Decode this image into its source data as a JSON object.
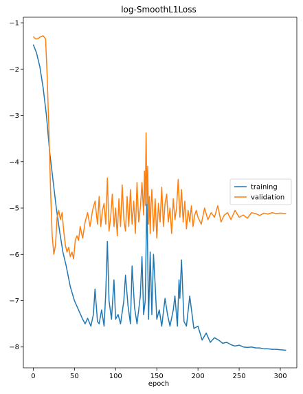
{
  "chart_data": {
    "type": "line",
    "title": "log-SmoothL1Loss",
    "xlabel": "epoch",
    "ylabel": "",
    "xlim": [
      -12,
      320
    ],
    "ylim": [
      -8.45,
      -0.88
    ],
    "xticks": [
      0,
      50,
      100,
      150,
      200,
      250,
      300
    ],
    "yticks": [
      -8,
      -7,
      -6,
      -5,
      -4,
      -3,
      -2,
      -1
    ],
    "grid": false,
    "legend": {
      "position": "center-right",
      "entries": [
        "training",
        "validation"
      ]
    },
    "series": [
      {
        "name": "training",
        "color": "#1f77b4",
        "x": [
          0,
          4,
          8,
          12,
          16,
          20,
          24,
          28,
          32,
          36,
          40,
          45,
          50,
          55,
          60,
          63,
          66,
          70,
          73,
          75,
          78,
          80,
          83,
          86,
          88,
          90,
          92,
          95,
          98,
          100,
          103,
          106,
          110,
          112,
          115,
          118,
          120,
          123,
          126,
          130,
          132,
          134,
          136,
          138,
          140,
          142,
          144,
          146,
          148,
          150,
          153,
          156,
          160,
          163,
          166,
          170,
          172,
          175,
          177,
          178,
          180,
          183,
          186,
          190,
          195,
          200,
          205,
          210,
          215,
          220,
          225,
          230,
          235,
          240,
          245,
          250,
          255,
          260,
          265,
          270,
          275,
          280,
          285,
          290,
          295,
          300,
          307
        ],
        "y": [
          -1.47,
          -1.65,
          -1.95,
          -2.4,
          -3.0,
          -3.8,
          -4.4,
          -5.0,
          -5.5,
          -5.95,
          -6.25,
          -6.7,
          -7.0,
          -7.2,
          -7.4,
          -7.5,
          -7.38,
          -7.55,
          -7.3,
          -6.75,
          -7.45,
          -7.5,
          -7.2,
          -7.55,
          -6.85,
          -5.72,
          -7.0,
          -7.4,
          -6.55,
          -7.4,
          -7.3,
          -7.5,
          -7.0,
          -6.45,
          -7.1,
          -7.5,
          -6.25,
          -7.15,
          -7.5,
          -6.9,
          -6.05,
          -7.3,
          -7.0,
          -4.72,
          -7.4,
          -5.95,
          -7.3,
          -6.0,
          -6.65,
          -7.4,
          -7.2,
          -7.55,
          -6.95,
          -7.3,
          -7.55,
          -7.2,
          -6.9,
          -7.55,
          -6.55,
          -6.95,
          -6.12,
          -7.45,
          -7.55,
          -6.9,
          -7.6,
          -7.55,
          -7.85,
          -7.7,
          -7.9,
          -7.8,
          -7.85,
          -7.92,
          -7.9,
          -7.95,
          -7.98,
          -7.96,
          -8.0,
          -8.01,
          -8.0,
          -8.02,
          -8.02,
          -8.04,
          -8.04,
          -8.05,
          -8.05,
          -8.06,
          -8.07
        ]
      },
      {
        "name": "validation",
        "color": "#ff7f0e",
        "x": [
          0,
          3,
          6,
          9,
          12,
          15,
          17,
          19,
          21,
          23,
          25,
          27,
          29,
          31,
          33,
          35,
          37,
          39,
          41,
          43,
          45,
          47,
          49,
          51,
          53,
          55,
          57,
          60,
          63,
          66,
          69,
          72,
          75,
          78,
          80,
          82,
          84,
          86,
          88,
          90,
          92,
          94,
          96,
          98,
          100,
          102,
          104,
          106,
          108,
          110,
          112,
          114,
          116,
          118,
          120,
          122,
          124,
          126,
          128,
          130,
          132,
          134,
          135,
          136,
          137,
          138,
          139,
          140,
          141,
          142,
          143,
          144,
          146,
          148,
          150,
          152,
          154,
          156,
          158,
          160,
          162,
          164,
          166,
          168,
          170,
          172,
          174,
          176,
          178,
          180,
          182,
          184,
          186,
          188,
          190,
          192,
          194,
          196,
          198,
          200,
          204,
          208,
          212,
          216,
          220,
          224,
          228,
          232,
          236,
          240,
          245,
          250,
          255,
          260,
          265,
          270,
          275,
          280,
          285,
          290,
          295,
          300,
          307
        ],
        "y": [
          -1.3,
          -1.35,
          -1.34,
          -1.3,
          -1.28,
          -1.35,
          -2.2,
          -3.3,
          -4.6,
          -5.6,
          -6.0,
          -5.8,
          -5.2,
          -5.05,
          -5.25,
          -5.1,
          -5.5,
          -5.8,
          -5.95,
          -5.85,
          -6.05,
          -5.95,
          -6.1,
          -5.7,
          -5.6,
          -5.7,
          -5.4,
          -5.65,
          -5.3,
          -5.1,
          -5.4,
          -5.05,
          -4.85,
          -5.35,
          -4.75,
          -5.4,
          -5.05,
          -4.9,
          -5.35,
          -4.35,
          -5.5,
          -5.2,
          -4.7,
          -5.4,
          -5.0,
          -5.6,
          -4.8,
          -5.4,
          -4.5,
          -5.25,
          -5.5,
          -4.75,
          -5.4,
          -4.6,
          -5.35,
          -4.85,
          -5.55,
          -4.45,
          -5.3,
          -5.0,
          -4.45,
          -5.15,
          -4.2,
          -4.95,
          -3.38,
          -4.9,
          -4.1,
          -5.35,
          -4.75,
          -5.55,
          -4.95,
          -4.6,
          -5.5,
          -4.8,
          -5.65,
          -4.9,
          -5.3,
          -4.55,
          -5.4,
          -4.9,
          -4.7,
          -5.3,
          -5.0,
          -5.55,
          -4.8,
          -5.25,
          -5.0,
          -4.38,
          -5.2,
          -4.6,
          -5.3,
          -4.85,
          -5.45,
          -5.05,
          -5.3,
          -4.95,
          -5.4,
          -5.15,
          -5.05,
          -5.2,
          -5.35,
          -5.0,
          -5.25,
          -5.1,
          -5.2,
          -4.95,
          -5.3,
          -5.15,
          -5.1,
          -5.25,
          -5.05,
          -5.2,
          -5.15,
          -5.22,
          -5.1,
          -5.12,
          -5.16,
          -5.11,
          -5.13,
          -5.1,
          -5.12,
          -5.11,
          -5.12
        ]
      }
    ]
  }
}
